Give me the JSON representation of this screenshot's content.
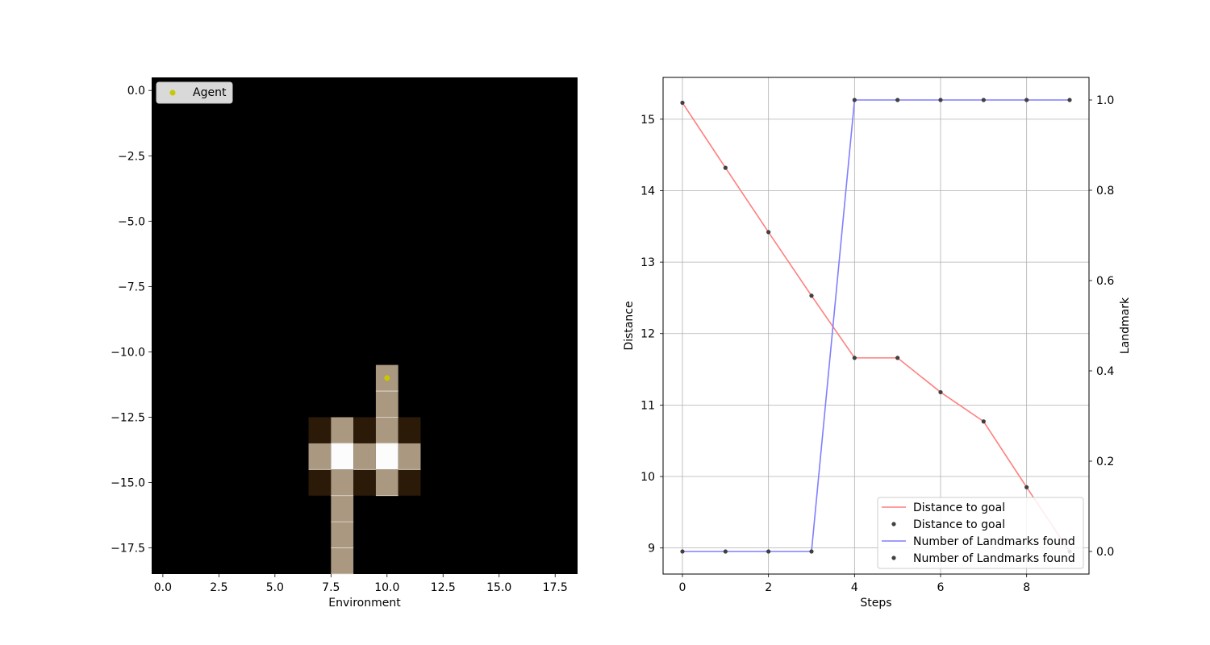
{
  "colors": {
    "background": "#000000",
    "agent": "#c8c800",
    "cell_bright": "#fbfcfb",
    "cell_mid": "#aa9880",
    "cell_dark": "#2b1a08",
    "distance_line": "#ff7f7f",
    "landmark_line": "#7f7fff",
    "point": "#404040",
    "grid": "#b0b0b0"
  },
  "chart_data": [
    {
      "type": "heatmap",
      "xlabel": "Environment",
      "ylabel": "",
      "xlim": [
        -0.5,
        18.5
      ],
      "ylim": [
        -18.5,
        0.5
      ],
      "x_ticks": [
        0.0,
        2.5,
        5.0,
        7.5,
        10.0,
        12.5,
        15.0,
        17.5
      ],
      "x_tick_labels": [
        "0.0",
        "2.5",
        "5.0",
        "7.5",
        "10.0",
        "12.5",
        "15.0",
        "17.5"
      ],
      "y_ticks": [
        0.0,
        -2.5,
        -5.0,
        -7.5,
        -10.0,
        -12.5,
        -15.0,
        -17.5
      ],
      "y_tick_labels": [
        "0.0",
        "−2.5",
        "−5.0",
        "−7.5",
        "−10.0",
        "−12.5",
        "−15.0",
        "−17.5"
      ],
      "cells": [
        {
          "col": 10,
          "row": 11,
          "level": "mid"
        },
        {
          "col": 10,
          "row": 12,
          "level": "mid"
        },
        {
          "col": 7,
          "row": 13,
          "level": "dark"
        },
        {
          "col": 8,
          "row": 13,
          "level": "mid"
        },
        {
          "col": 9,
          "row": 13,
          "level": "dark"
        },
        {
          "col": 10,
          "row": 13,
          "level": "mid"
        },
        {
          "col": 11,
          "row": 13,
          "level": "dark"
        },
        {
          "col": 7,
          "row": 14,
          "level": "mid"
        },
        {
          "col": 8,
          "row": 14,
          "level": "bright"
        },
        {
          "col": 9,
          "row": 14,
          "level": "mid"
        },
        {
          "col": 10,
          "row": 14,
          "level": "bright"
        },
        {
          "col": 11,
          "row": 14,
          "level": "mid"
        },
        {
          "col": 7,
          "row": 15,
          "level": "dark"
        },
        {
          "col": 8,
          "row": 15,
          "level": "mid"
        },
        {
          "col": 9,
          "row": 15,
          "level": "dark"
        },
        {
          "col": 10,
          "row": 15,
          "level": "mid"
        },
        {
          "col": 11,
          "row": 15,
          "level": "dark"
        },
        {
          "col": 8,
          "row": 16,
          "level": "mid"
        },
        {
          "col": 8,
          "row": 17,
          "level": "mid"
        },
        {
          "col": 8,
          "row": 18,
          "level": "mid"
        }
      ],
      "agent": {
        "x": 10,
        "y": -11
      },
      "legend": {
        "label": "Agent",
        "position": "upper left"
      }
    },
    {
      "type": "line",
      "xlabel": "Steps",
      "ylabel": "Distance",
      "y2label": "Landmark",
      "x": [
        0,
        1,
        2,
        3,
        4,
        5,
        6,
        7,
        8,
        9
      ],
      "x_ticks": [
        0,
        2,
        4,
        6,
        8
      ],
      "xlim": [
        -0.45,
        9.45
      ],
      "ylim": [
        8.635,
        15.585
      ],
      "y_ticks": [
        9,
        10,
        11,
        12,
        13,
        14,
        15
      ],
      "y2lim": [
        -0.05,
        1.05
      ],
      "y2_ticks": [
        0.0,
        0.2,
        0.4,
        0.6,
        0.8,
        1.0
      ],
      "y2_tick_labels": [
        "0.0",
        "0.2",
        "0.4",
        "0.6",
        "0.8",
        "1.0"
      ],
      "grid": true,
      "series": [
        {
          "name": "Distance to goal",
          "axis": "left",
          "values": [
            15.23,
            14.32,
            13.42,
            12.53,
            11.66,
            11.66,
            11.18,
            10.77,
            9.85,
            8.95
          ]
        },
        {
          "name": "Number of Landmarks found",
          "axis": "right",
          "values": [
            0,
            0,
            0,
            0,
            1,
            1,
            1,
            1,
            1,
            1
          ]
        }
      ],
      "legend": {
        "position": "lower right",
        "entries": [
          {
            "label": "Distance to goal",
            "kind": "line",
            "color": "#ff7f7f"
          },
          {
            "label": "Distance to goal",
            "kind": "point",
            "color": "#404040"
          },
          {
            "label": "Number of Landmarks found",
            "kind": "line",
            "color": "#7f7fff"
          },
          {
            "label": "Number of Landmarks found",
            "kind": "point",
            "color": "#404040"
          }
        ]
      }
    }
  ]
}
